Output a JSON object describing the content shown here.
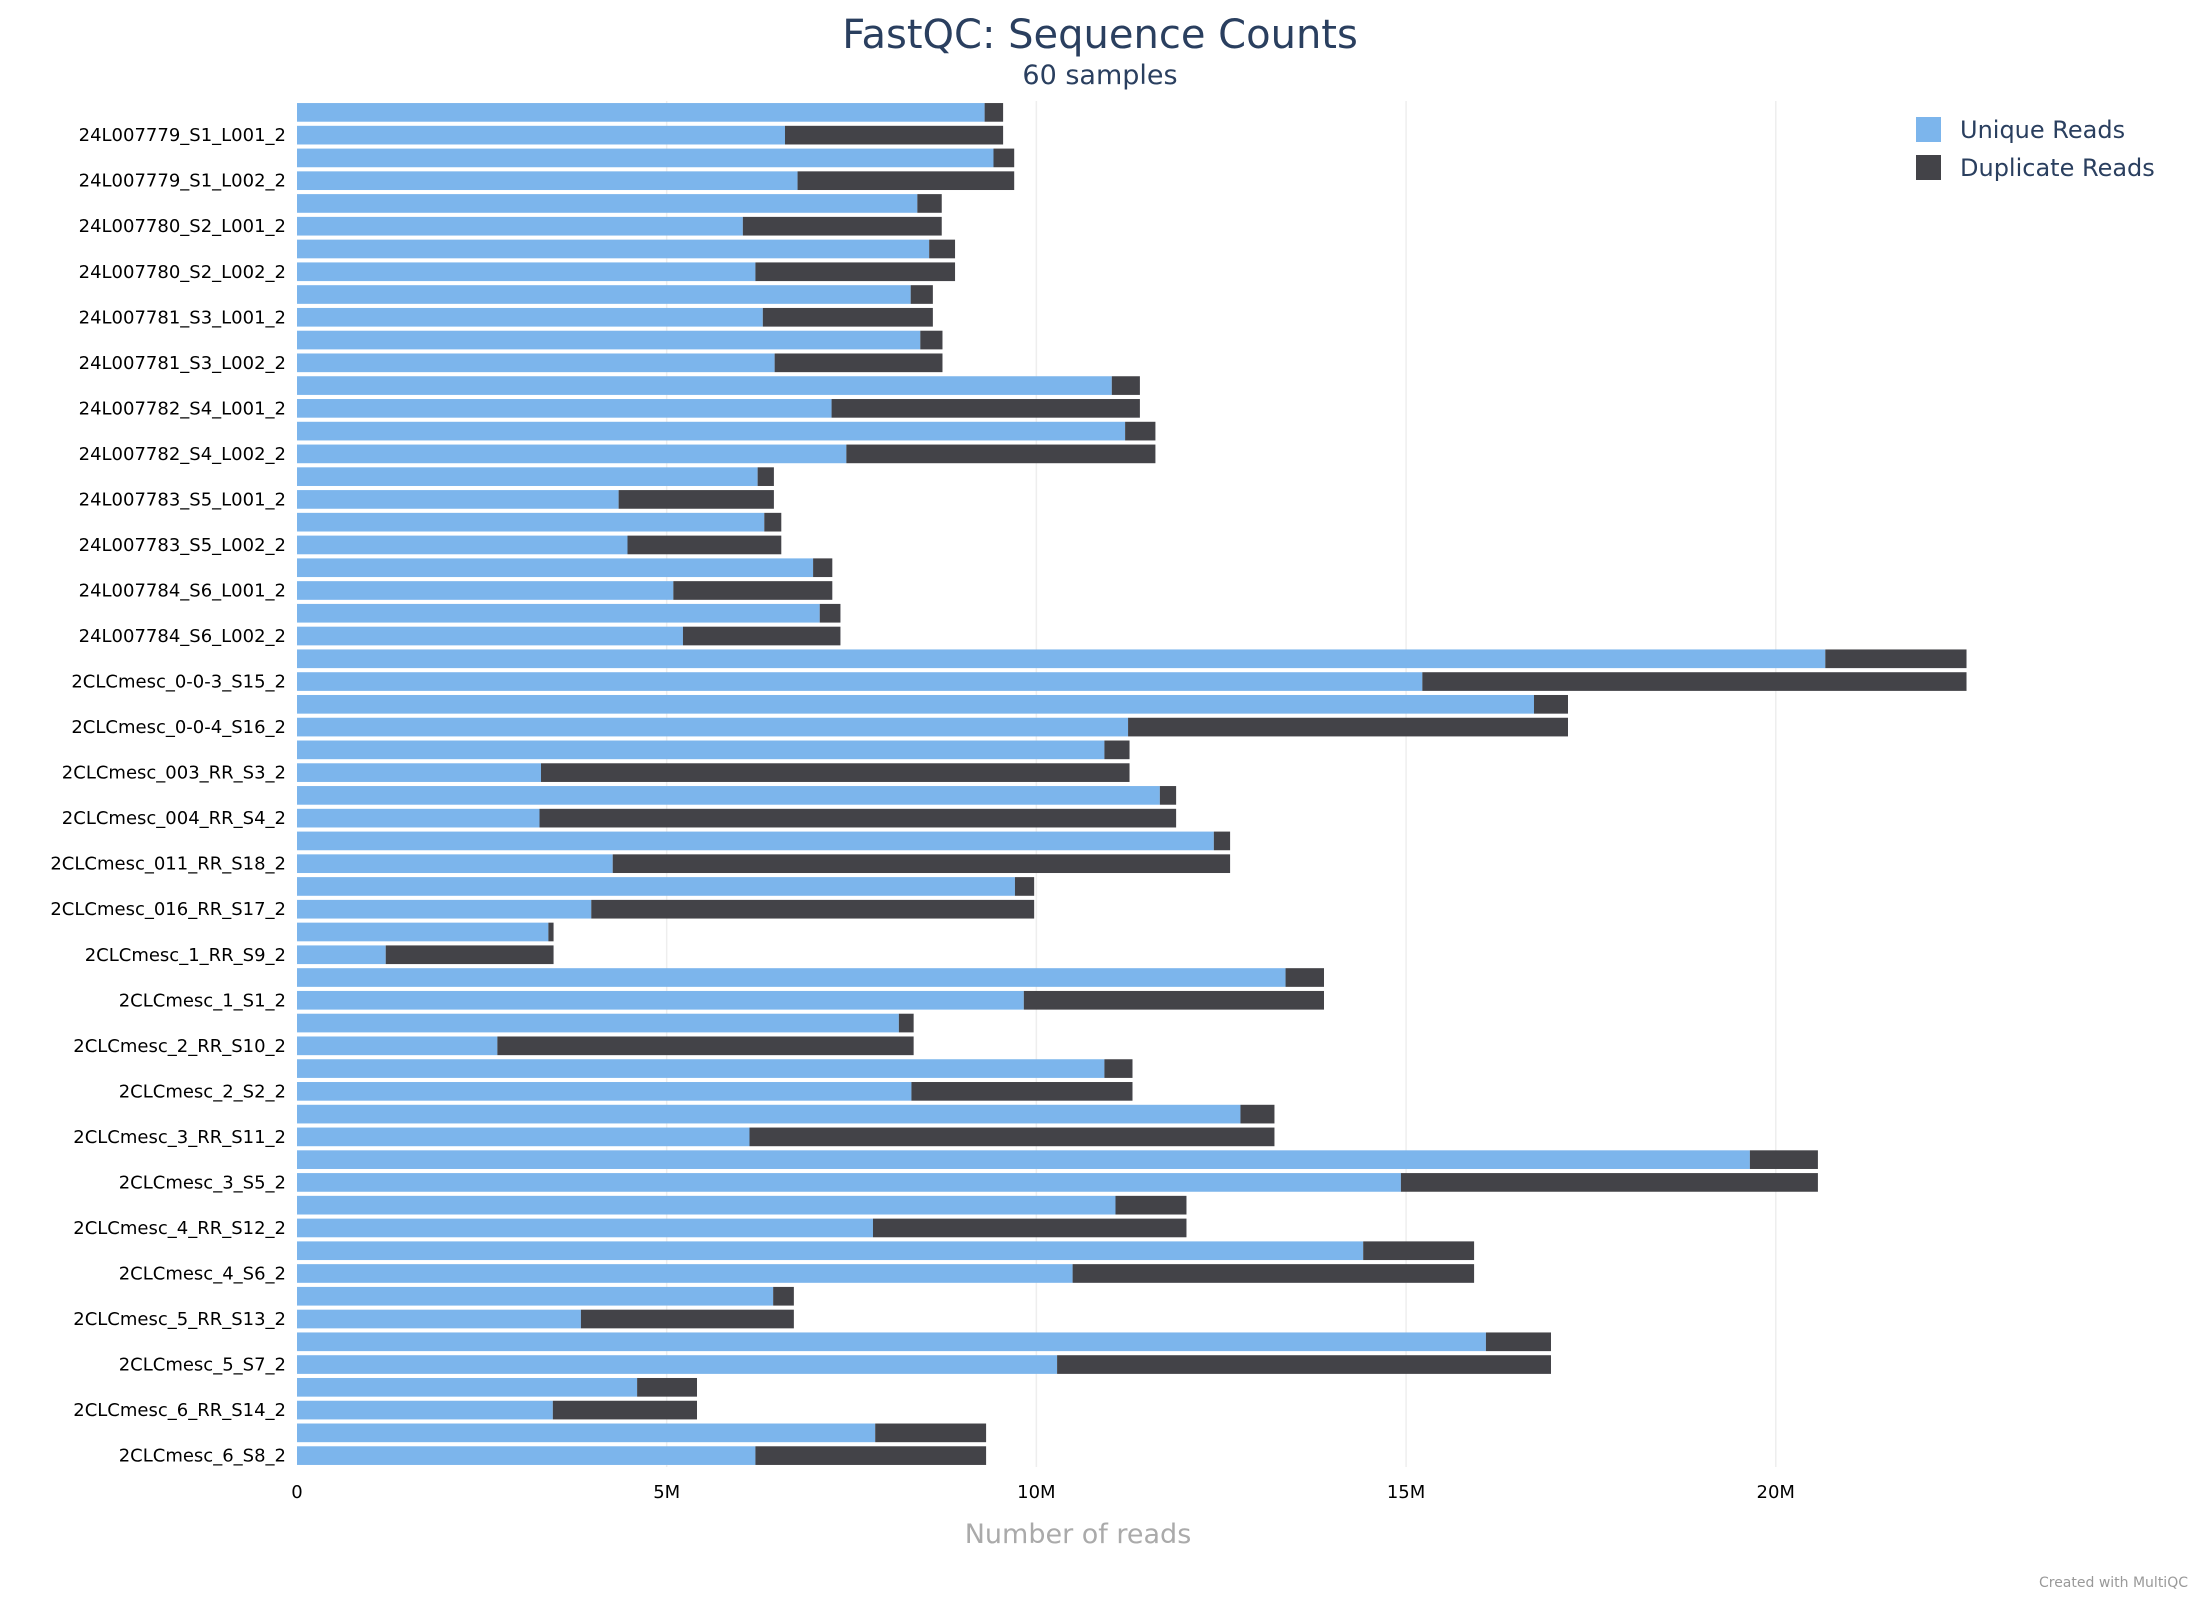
{
  "chart_data": {
    "type": "bar",
    "orientation": "horizontal",
    "stacked": true,
    "title": "FastQC: Sequence Counts",
    "subtitle": "60 samples",
    "xlabel": "Number of reads",
    "xlim": [
      0,
      22600000
    ],
    "x_ticks": [
      {
        "value": 0,
        "label": "0"
      },
      {
        "value": 5000000,
        "label": "5M"
      },
      {
        "value": 10000000,
        "label": "10M"
      },
      {
        "value": 15000000,
        "label": "15M"
      },
      {
        "value": 20000000,
        "label": "20M"
      }
    ],
    "grid": true,
    "legend_position": "top-right",
    "series": [
      {
        "name": "Unique Reads",
        "color": "#7cb5ec"
      },
      {
        "name": "Duplicate Reads",
        "color": "#434348"
      }
    ],
    "categories": [
      {
        "label": "",
        "unique": 9300000,
        "duplicate": 250000
      },
      {
        "label": "24L007779_S1_L001_2",
        "unique": 6600000,
        "duplicate": 2950000
      },
      {
        "label": "",
        "unique": 9420000,
        "duplicate": 280000
      },
      {
        "label": "24L007779_S1_L002_2",
        "unique": 6770000,
        "duplicate": 2930000
      },
      {
        "label": "",
        "unique": 8390000,
        "duplicate": 330000
      },
      {
        "label": "24L007780_S2_L001_2",
        "unique": 6030000,
        "duplicate": 2690000
      },
      {
        "label": "",
        "unique": 8550000,
        "duplicate": 350000
      },
      {
        "label": "24L007780_S2_L002_2",
        "unique": 6200000,
        "duplicate": 2700000
      },
      {
        "label": "",
        "unique": 8300000,
        "duplicate": 300000
      },
      {
        "label": "24L007781_S3_L001_2",
        "unique": 6300000,
        "duplicate": 2300000
      },
      {
        "label": "",
        "unique": 8430000,
        "duplicate": 300000
      },
      {
        "label": "24L007781_S3_L002_2",
        "unique": 6460000,
        "duplicate": 2270000
      },
      {
        "label": "",
        "unique": 11020000,
        "duplicate": 380000
      },
      {
        "label": "24L007782_S4_L001_2",
        "unique": 7230000,
        "duplicate": 4170000
      },
      {
        "label": "",
        "unique": 11200000,
        "duplicate": 410000
      },
      {
        "label": "24L007782_S4_L002_2",
        "unique": 7430000,
        "duplicate": 4180000
      },
      {
        "label": "",
        "unique": 6230000,
        "duplicate": 220000
      },
      {
        "label": "24L007783_S5_L001_2",
        "unique": 4350000,
        "duplicate": 2100000
      },
      {
        "label": "",
        "unique": 6320000,
        "duplicate": 230000
      },
      {
        "label": "24L007783_S5_L002_2",
        "unique": 4470000,
        "duplicate": 2080000
      },
      {
        "label": "",
        "unique": 6980000,
        "duplicate": 260000
      },
      {
        "label": "24L007784_S6_L001_2",
        "unique": 5090000,
        "duplicate": 2150000
      },
      {
        "label": "",
        "unique": 7070000,
        "duplicate": 280000
      },
      {
        "label": "24L007784_S6_L002_2",
        "unique": 5220000,
        "duplicate": 2130000
      },
      {
        "label": "",
        "unique": 20670000,
        "duplicate": 1910000
      },
      {
        "label": "2CLCmesc_0-0-3_S15_2",
        "unique": 15220000,
        "duplicate": 7360000
      },
      {
        "label": "",
        "unique": 16730000,
        "duplicate": 460000
      },
      {
        "label": "2CLCmesc_0-0-4_S16_2",
        "unique": 11240000,
        "duplicate": 5950000
      },
      {
        "label": "",
        "unique": 10920000,
        "duplicate": 340000
      },
      {
        "label": "2CLCmesc_003_RR_S3_2",
        "unique": 3300000,
        "duplicate": 7960000
      },
      {
        "label": "",
        "unique": 11670000,
        "duplicate": 220000
      },
      {
        "label": "2CLCmesc_004_RR_S4_2",
        "unique": 3280000,
        "duplicate": 8610000
      },
      {
        "label": "",
        "unique": 12400000,
        "duplicate": 220000
      },
      {
        "label": "2CLCmesc_011_RR_S18_2",
        "unique": 4270000,
        "duplicate": 8350000
      },
      {
        "label": "",
        "unique": 9710000,
        "duplicate": 260000
      },
      {
        "label": "2CLCmesc_016_RR_S17_2",
        "unique": 3980000,
        "duplicate": 5990000
      },
      {
        "label": "",
        "unique": 3400000,
        "duplicate": 70000
      },
      {
        "label": "2CLCmesc_1_RR_S9_2",
        "unique": 1200000,
        "duplicate": 2270000
      },
      {
        "label": "",
        "unique": 13370000,
        "duplicate": 520000
      },
      {
        "label": "2CLCmesc_1_S1_2",
        "unique": 9830000,
        "duplicate": 4060000
      },
      {
        "label": "",
        "unique": 8140000,
        "duplicate": 200000
      },
      {
        "label": "2CLCmesc_2_RR_S10_2",
        "unique": 2710000,
        "duplicate": 5630000
      },
      {
        "label": "",
        "unique": 10920000,
        "duplicate": 380000
      },
      {
        "label": "2CLCmesc_2_S2_2",
        "unique": 8310000,
        "duplicate": 2990000
      },
      {
        "label": "",
        "unique": 12760000,
        "duplicate": 460000
      },
      {
        "label": "2CLCmesc_3_RR_S11_2",
        "unique": 6120000,
        "duplicate": 7100000
      },
      {
        "label": "",
        "unique": 19650000,
        "duplicate": 920000
      },
      {
        "label": "2CLCmesc_3_S5_2",
        "unique": 14930000,
        "duplicate": 5640000
      },
      {
        "label": "",
        "unique": 11070000,
        "duplicate": 960000
      },
      {
        "label": "2CLCmesc_4_RR_S12_2",
        "unique": 7790000,
        "duplicate": 4240000
      },
      {
        "label": "",
        "unique": 14420000,
        "duplicate": 1500000
      },
      {
        "label": "2CLCmesc_4_S6_2",
        "unique": 10490000,
        "duplicate": 5430000
      },
      {
        "label": "",
        "unique": 6440000,
        "duplicate": 280000
      },
      {
        "label": "2CLCmesc_5_RR_S13_2",
        "unique": 3840000,
        "duplicate": 2880000
      },
      {
        "label": "",
        "unique": 16080000,
        "duplicate": 880000
      },
      {
        "label": "2CLCmesc_5_S7_2",
        "unique": 10280000,
        "duplicate": 6680000
      },
      {
        "label": "",
        "unique": 4600000,
        "duplicate": 810000
      },
      {
        "label": "2CLCmesc_6_RR_S14_2",
        "unique": 3460000,
        "duplicate": 1950000
      },
      {
        "label": "",
        "unique": 7820000,
        "duplicate": 1500000
      },
      {
        "label": "2CLCmesc_6_S8_2",
        "unique": 6200000,
        "duplicate": 3120000
      }
    ]
  },
  "footer": {
    "credit": "Created with MultiQC"
  }
}
